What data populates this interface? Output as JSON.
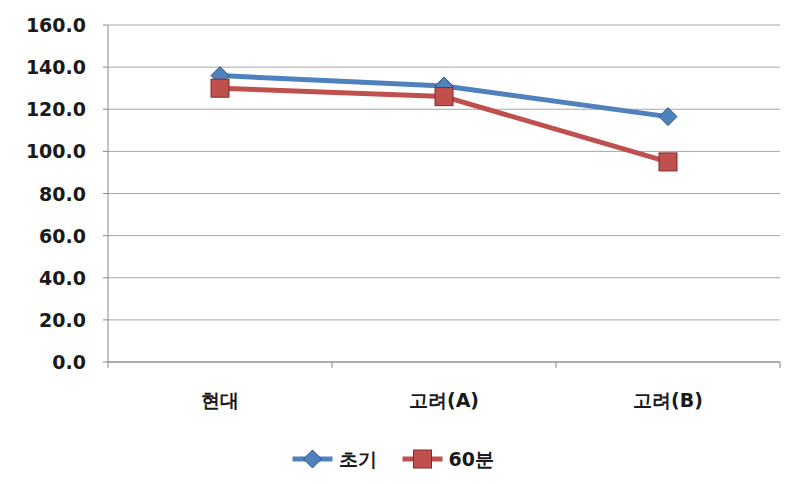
{
  "chart_data": {
    "type": "line",
    "categories": [
      "현대",
      "고려(A)",
      "고려(B)"
    ],
    "series": [
      {
        "name": "초기",
        "color": "#4f81bd",
        "marker": "diamond",
        "line_style": "solid",
        "values": [
          136,
          131,
          116.5
        ]
      },
      {
        "name": "60분",
        "color": "#c0504d",
        "marker": "square",
        "line_style": "solid",
        "values": [
          130,
          126,
          95
        ]
      }
    ],
    "ylim": [
      0,
      160
    ],
    "yticks": [
      {
        "value": 0,
        "label": "0.0"
      },
      {
        "value": 20,
        "label": "20.0"
      },
      {
        "value": 40,
        "label": "40.0"
      },
      {
        "value": 60,
        "label": "60.0"
      },
      {
        "value": 80,
        "label": "80.0"
      },
      {
        "value": 100,
        "label": "100.0"
      },
      {
        "value": 120,
        "label": "120.0"
      },
      {
        "value": 140,
        "label": "140.0"
      },
      {
        "value": 160,
        "label": "160.0"
      }
    ],
    "grid": true,
    "legend": "bottom"
  }
}
